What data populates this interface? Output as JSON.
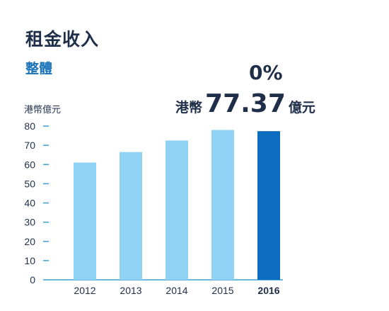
{
  "header": {
    "title": "租金收入",
    "subtitle": "整體"
  },
  "headline": {
    "change": "0%",
    "prefix": "港幣",
    "amount": "77.37",
    "suffix": "億元"
  },
  "colors": {
    "bar": "#8fd2f3",
    "highlight_bar": "#0b6cc0",
    "axis": "#3aa0d8",
    "text": "#1f2f4a",
    "accent": "#1a73b8"
  },
  "chart_data": {
    "type": "bar",
    "title": "",
    "xlabel": "",
    "ylabel": "港幣億元",
    "categories": [
      "2012",
      "2013",
      "2014",
      "2015",
      "2016"
    ],
    "values": [
      61,
      66.5,
      72.5,
      78,
      77.37
    ],
    "highlight_category": "2016",
    "ylim": [
      0,
      80
    ],
    "yticks": [
      0,
      10,
      20,
      30,
      40,
      50,
      60,
      70,
      80
    ],
    "grid": false,
    "legend": "none"
  }
}
